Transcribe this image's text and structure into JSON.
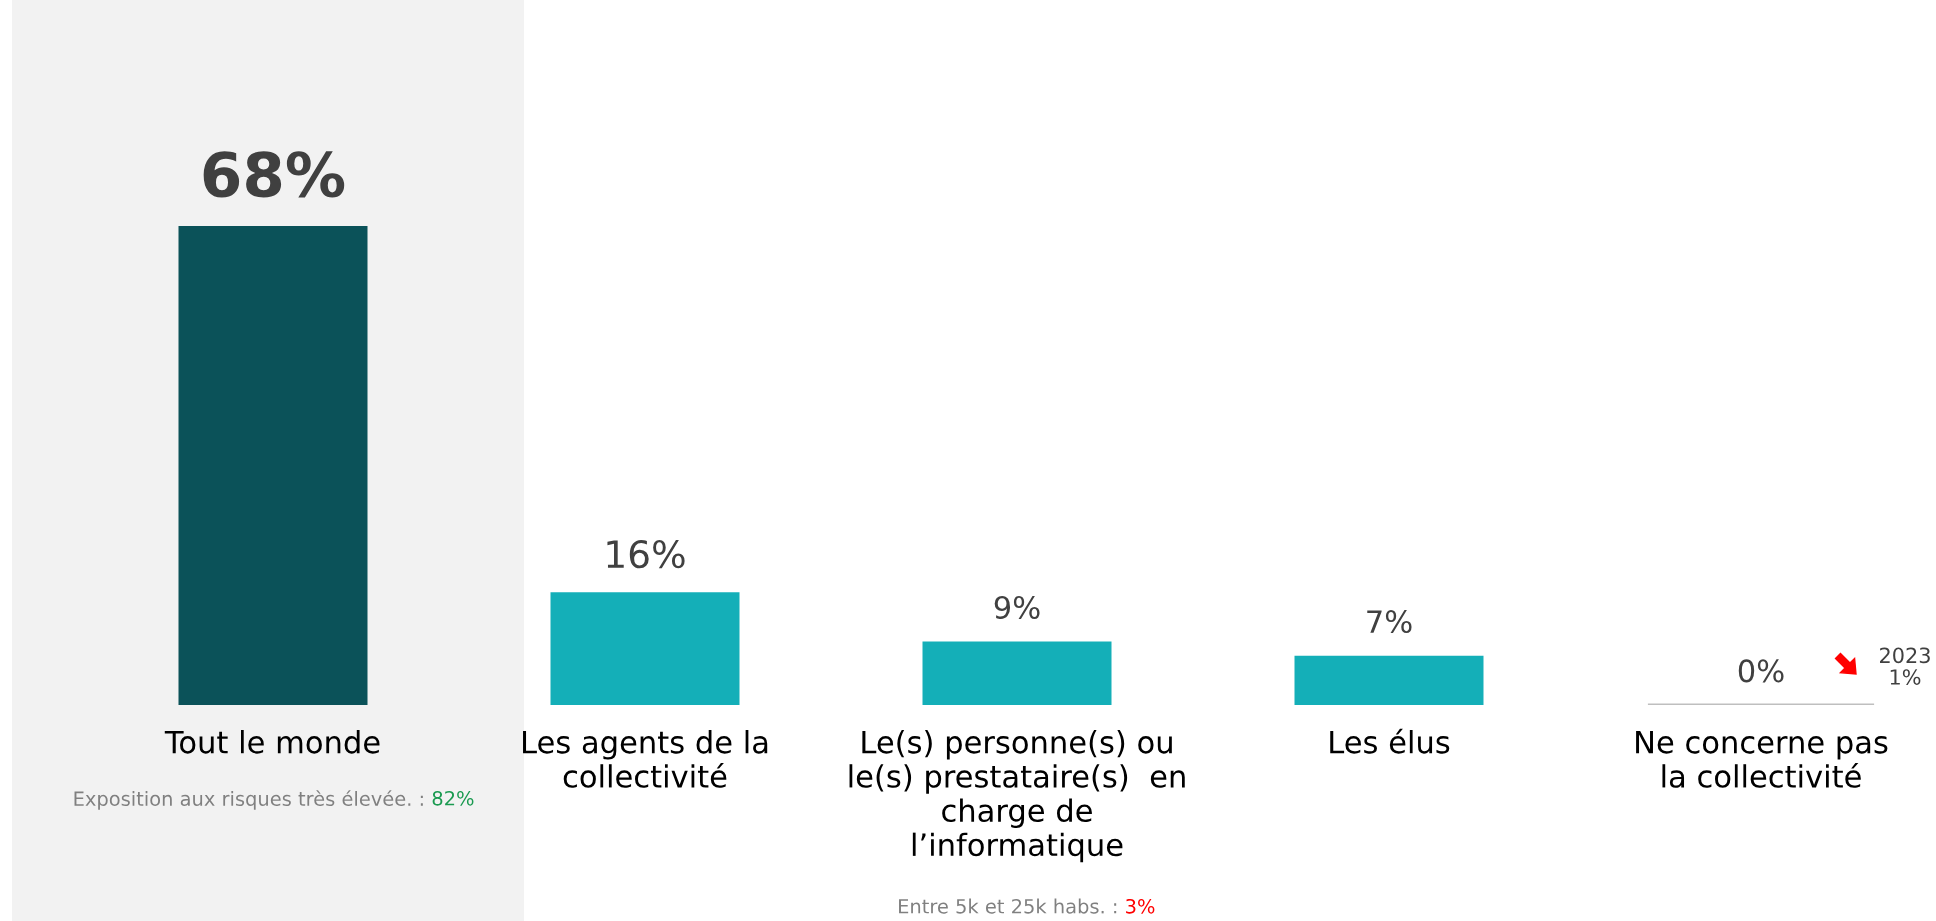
{
  "chart_data": {
    "type": "bar",
    "categories": [
      "Tout le monde",
      "Les agents de la\ncollectivité",
      "Le(s) personne(s) ou\nle(s) prestataire(s)  en\ncharge de\nl’informatique",
      "Les élus",
      "Ne concerne pas\nla collectivité"
    ],
    "values": [
      68,
      16,
      9,
      7,
      0
    ],
    "colors": [
      "#0b5259",
      "#14afb8",
      "#14afb8",
      "#14afb8",
      "#14afb8"
    ],
    "data_labels": true,
    "value_labels": [
      "68%",
      "16%",
      "9%",
      "7%",
      "0%"
    ],
    "annotations": [
      "Exposition aux risques très élevée. : 82%",
      "Entre 5k et 25k habs. : 3%",
      "2023\n1%"
    ],
    "grid": false
  }
}
